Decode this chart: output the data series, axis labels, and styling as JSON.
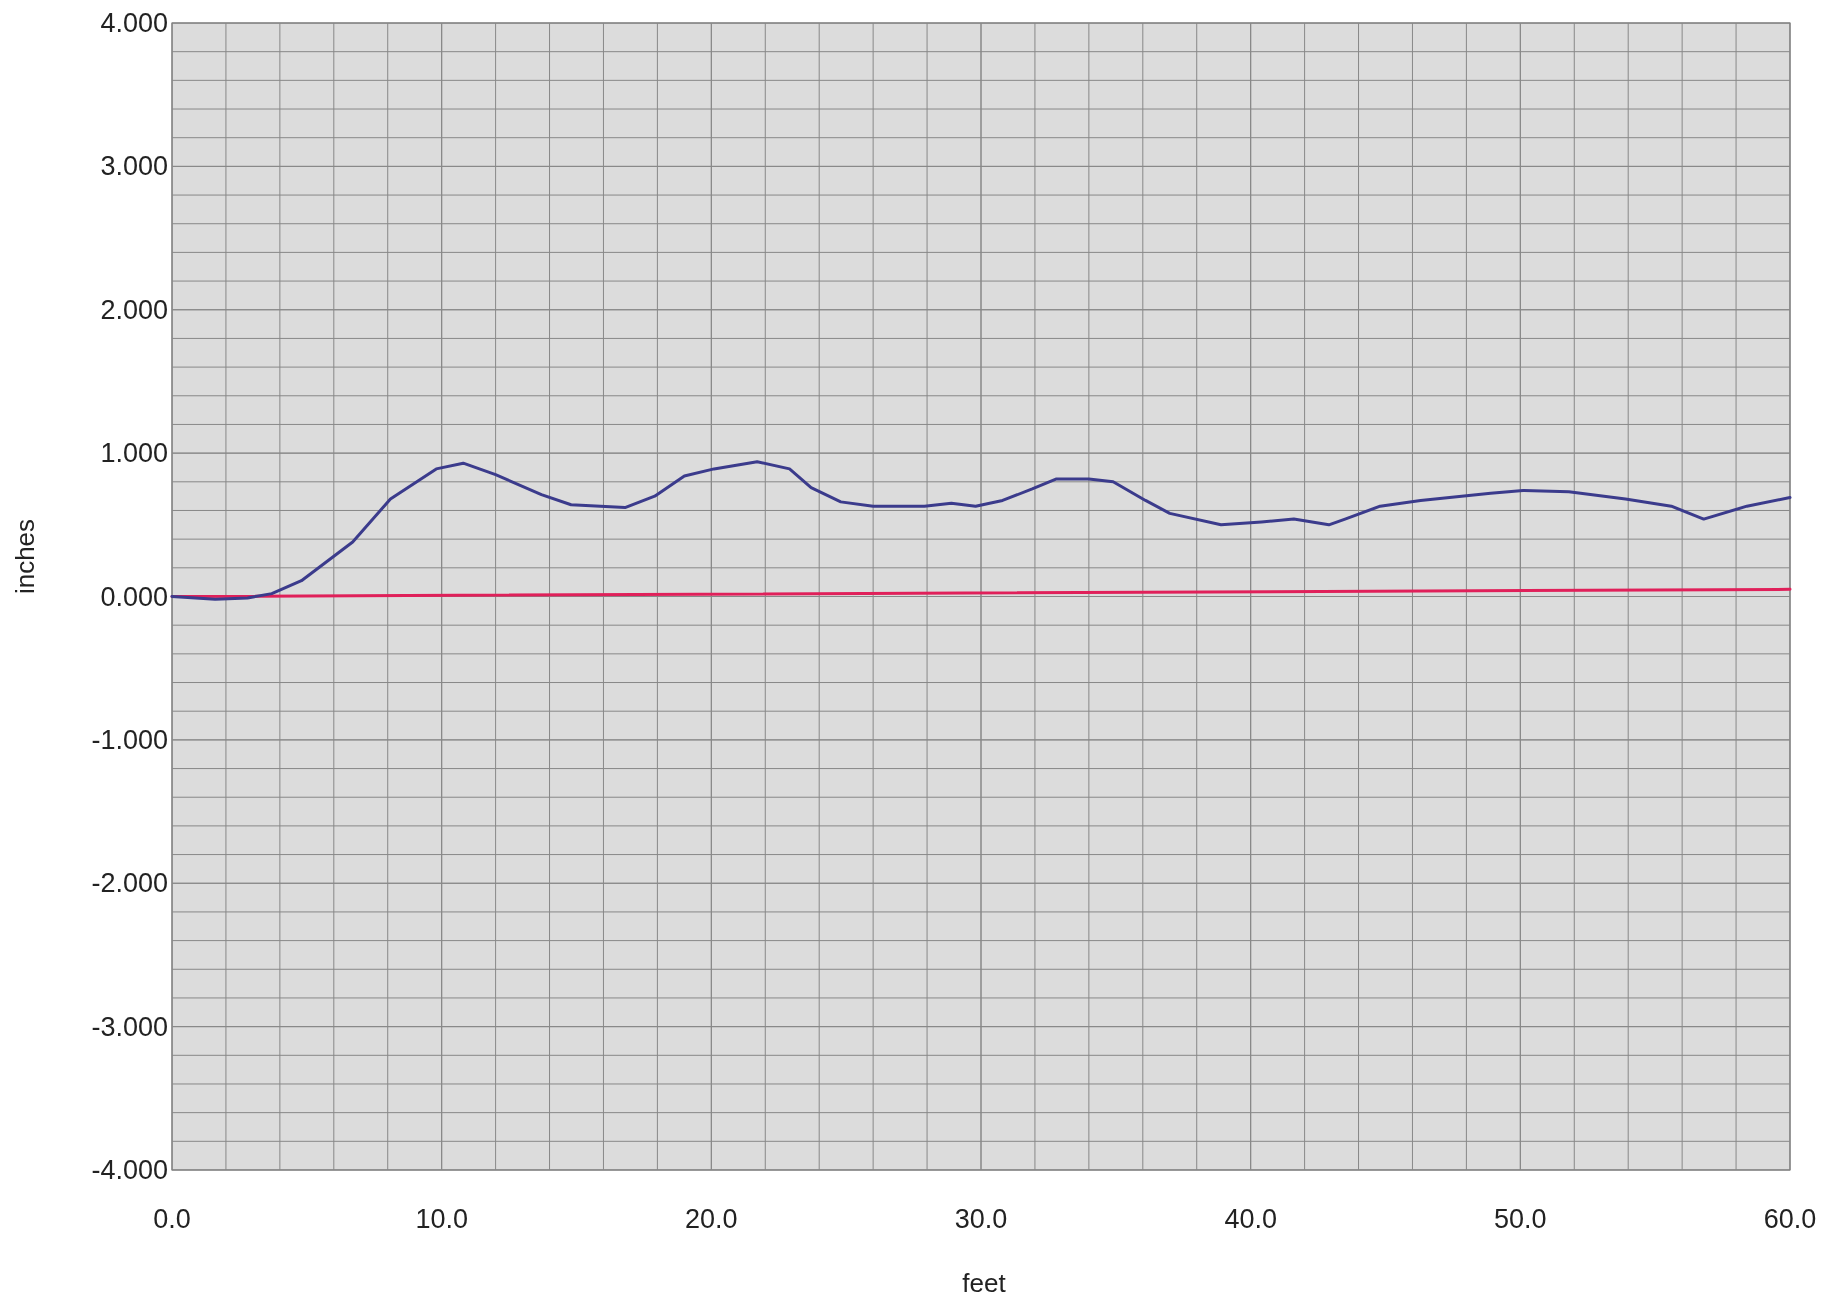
{
  "chart_data": {
    "type": "line",
    "xlabel": "feet",
    "ylabel": "inches",
    "xlim": [
      0,
      60
    ],
    "ylim": [
      -4,
      4
    ],
    "xticks": [
      {
        "value": 0,
        "label": "0.0"
      },
      {
        "value": 10,
        "label": "10.0"
      },
      {
        "value": 20,
        "label": "20.0"
      },
      {
        "value": 30,
        "label": "30.0"
      },
      {
        "value": 40,
        "label": "40.0"
      },
      {
        "value": 50,
        "label": "50.0"
      },
      {
        "value": 60,
        "label": "60.0"
      }
    ],
    "yticks": [
      {
        "value": -4,
        "label": "-4.000"
      },
      {
        "value": -3,
        "label": "-3.000"
      },
      {
        "value": -2,
        "label": "-2.000"
      },
      {
        "value": -1,
        "label": "-1.000"
      },
      {
        "value": 0,
        "label": "0.000"
      },
      {
        "value": 1,
        "label": "1.000"
      },
      {
        "value": 2,
        "label": "2.000"
      },
      {
        "value": 3,
        "label": "3.000"
      },
      {
        "value": 4,
        "label": "4.000"
      }
    ],
    "grid": true,
    "marker": "none",
    "line_style": "solid",
    "series": [
      {
        "color": "#e0205a",
        "x": [
          0,
          60
        ],
        "values": [
          0,
          0.05
        ]
      },
      {
        "color": "#3b3b8c",
        "x": [
          0,
          1.6,
          2.8,
          3.7,
          4.8,
          6.7,
          8.1,
          9.8,
          10.8,
          12.0,
          13.7,
          14.8,
          16.8,
          17.9,
          19.0,
          20.1,
          21.7,
          22.9,
          23.7,
          24.8,
          26.0,
          27.9,
          28.9,
          29.8,
          30.8,
          31.9,
          32.8,
          34.0,
          34.9,
          36.1,
          37.0,
          38.9,
          40.4,
          41.6,
          42.9,
          43.5,
          44.8,
          46.3,
          48.9,
          50.1,
          51.8,
          53.9,
          55.6,
          56.8,
          58.4,
          60
        ],
        "values": [
          0,
          -0.02,
          -0.01,
          0.02,
          0.11,
          0.38,
          0.68,
          0.89,
          0.93,
          0.85,
          0.71,
          0.64,
          0.62,
          0.7,
          0.84,
          0.89,
          0.94,
          0.89,
          0.76,
          0.66,
          0.63,
          0.63,
          0.65,
          0.63,
          0.67,
          0.75,
          0.82,
          0.82,
          0.8,
          0.67,
          0.58,
          0.5,
          0.52,
          0.54,
          0.5,
          0.54,
          0.63,
          0.67,
          0.72,
          0.74,
          0.73,
          0.68,
          0.63,
          0.54,
          0.63,
          0.69
        ]
      }
    ]
  }
}
